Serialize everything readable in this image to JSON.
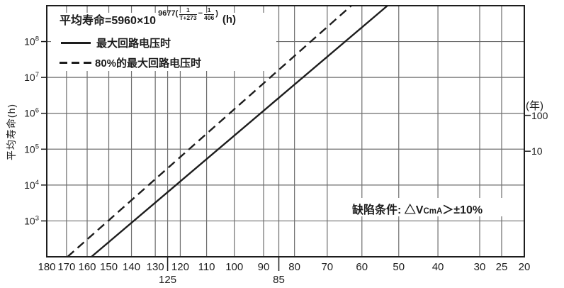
{
  "chart_data": {
    "type": "line",
    "title_formula": "平均寿命=5960×10^(9677(1/(T+273)−1/406)) (h)",
    "grid": true,
    "legend_position": "top-left",
    "colors": {
      "ink": "#1d1d1d",
      "grid": "#6e6e6e",
      "background": "#ffffff"
    },
    "x_axis": {
      "scale": "reciprocal-temperature (Arrhenius, 1/(T+273))",
      "range": [
        180,
        20
      ],
      "ticks": [
        180,
        170,
        160,
        150,
        140,
        130,
        120,
        110,
        100,
        90,
        80,
        70,
        60,
        50,
        40,
        30,
        25,
        20
      ],
      "highlighted_ticks": [
        125,
        85
      ]
    },
    "y_axis": {
      "label": "平均寿命(h)",
      "scale": "log",
      "log_range": [
        2,
        9
      ],
      "decades": [
        3,
        4,
        5,
        6,
        7,
        8
      ],
      "tick_labels": [
        "10³",
        "10⁴",
        "10⁵",
        "10⁶",
        "10⁷",
        "10⁸"
      ]
    },
    "y2_axis": {
      "label": "(年)",
      "ticks": [
        {
          "label": "100",
          "hours": 876000
        },
        {
          "label": "10",
          "hours": 87600
        }
      ]
    },
    "series": [
      {
        "name": "最大回路电压时",
        "style": "solid",
        "points": [
          {
            "temp_c": 158,
            "hours": 100
          },
          {
            "temp_c": 53,
            "hours": 1000000000
          }
        ]
      },
      {
        "name": "80%的最大回路电压时",
        "style": "dashed",
        "points": [
          {
            "temp_c": 169.5,
            "hours": 100
          },
          {
            "temp_c": 63,
            "hours": 1000000000
          }
        ]
      }
    ],
    "annotation": "缺陷条件: △VCmA＞±10%"
  },
  "formula": {
    "base": "平均寿命=5960×10",
    "exp_prefix": "9677(",
    "frac1_num": "1",
    "frac1_den": "T+273",
    "exp_minus": "−",
    "frac2_num": "1",
    "frac2_den": "406",
    "exp_suffix": ")",
    "unit": "(h)"
  },
  "legend": {
    "items": [
      {
        "label": "最大回路电压时",
        "style": "solid"
      },
      {
        "label": "80%的最大回路电压时",
        "style": "dashed"
      }
    ]
  },
  "annotation": {
    "prefix": "缺陷条件: △V",
    "sub": "CmA",
    "suffix": "＞±10%"
  },
  "axes": {
    "y_title": "平均寿命(h)",
    "y2_title": "(年)",
    "y2_ticks": [
      "100",
      "10"
    ]
  }
}
